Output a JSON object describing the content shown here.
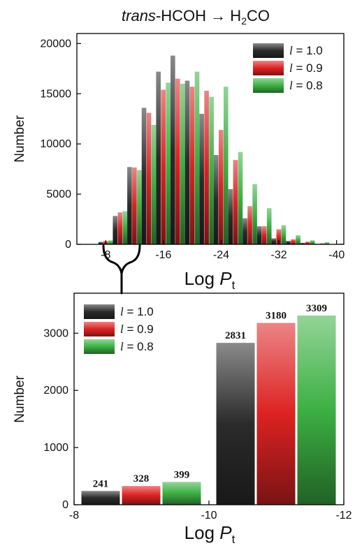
{
  "colors": {
    "l1": "#2b2b2b",
    "l09": "#dd2222",
    "l08": "#3cb043"
  },
  "chart_data": [
    {
      "type": "bar",
      "title_prefix": "trans",
      "title_suffix": "-HCOH",
      "title_arrow": "→",
      "title_product_main": "H",
      "title_product_sub": "2",
      "title_product_end": "CO",
      "xlabel_main": "Log ",
      "xlabel_var": "P",
      "xlabel_sub": "t",
      "ylabel": "Number",
      "xlim": [
        -4,
        -41
      ],
      "ylim": [
        0,
        21000
      ],
      "xticks": [
        -8,
        -16,
        -24,
        -32,
        -40
      ],
      "yticks": [
        0,
        5000,
        10000,
        15000,
        20000
      ],
      "legend_position": "top-right",
      "categories": [
        -8,
        -10,
        -12,
        -14,
        -16,
        -18,
        -20,
        -22,
        -24,
        -26,
        -28,
        -30,
        -32,
        -34,
        -36,
        -38,
        -40
      ],
      "series": [
        {
          "name_var": "l",
          "name_rest": " = 1.0",
          "values": [
            241,
            2831,
            7700,
            13600,
            17200,
            18800,
            16300,
            13000,
            8900,
            5500,
            2600,
            1800,
            600,
            350,
            150,
            60,
            20
          ]
        },
        {
          "name_var": "l",
          "name_rest": " = 0.9",
          "values": [
            328,
            3180,
            7650,
            13100,
            15400,
            16500,
            15700,
            15300,
            11400,
            8400,
            3800,
            1800,
            1500,
            500,
            260,
            100,
            40
          ]
        },
        {
          "name_var": "l",
          "name_rest": " = 0.8",
          "values": [
            399,
            3309,
            7400,
            11900,
            16100,
            16000,
            17200,
            14700,
            15700,
            9200,
            6000,
            3600,
            1900,
            900,
            400,
            200,
            80
          ]
        }
      ]
    },
    {
      "type": "bar",
      "xlabel_main": "Log ",
      "xlabel_var": "P",
      "xlabel_sub": "t",
      "ylabel": "Number",
      "xlim": [
        -8,
        -12
      ],
      "ylim": [
        0,
        3700
      ],
      "xticks": [
        -8,
        -10,
        -12
      ],
      "yticks": [
        0,
        1000,
        2000,
        3000
      ],
      "legend_position": "top-left",
      "categories": [
        -9,
        -11
      ],
      "series": [
        {
          "name_var": "l",
          "name_rest": " = 1.0",
          "values": [
            241,
            2831
          ],
          "labels": [
            "241",
            "2831"
          ]
        },
        {
          "name_var": "l",
          "name_rest": " = 0.9",
          "values": [
            328,
            3180
          ],
          "labels": [
            "328",
            "3180"
          ]
        },
        {
          "name_var": "l",
          "name_rest": " = 0.8",
          "values": [
            399,
            3309
          ],
          "labels": [
            "399",
            "3309"
          ]
        }
      ]
    }
  ]
}
